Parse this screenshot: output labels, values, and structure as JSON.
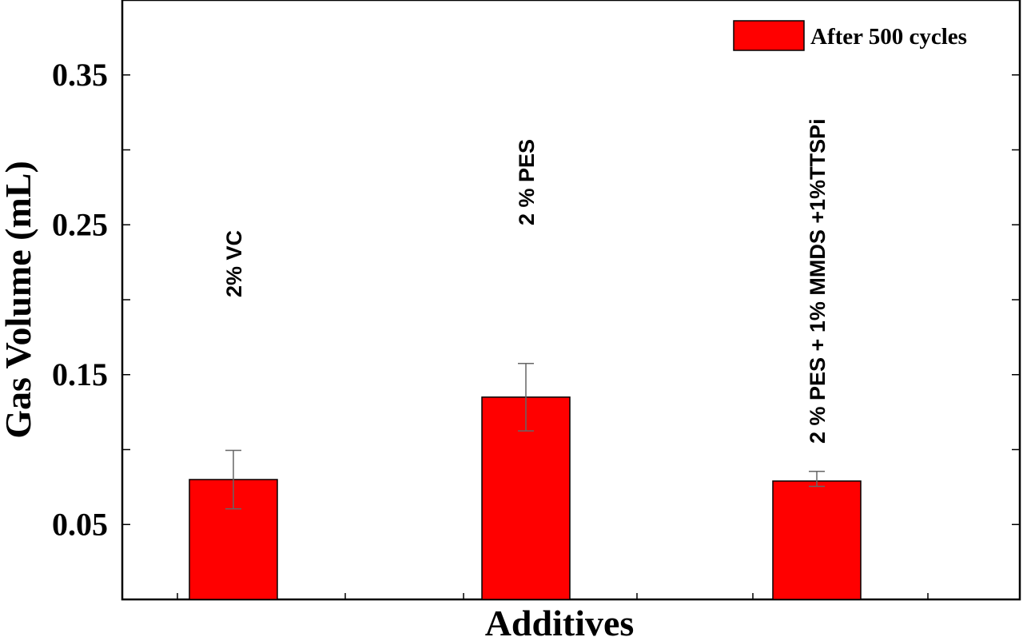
{
  "chart_data": {
    "type": "bar",
    "title": "",
    "xlabel": "Additives",
    "ylabel": "Gas Volume (mL)",
    "ylim": [
      0.0,
      0.4
    ],
    "yticks": [
      0.0,
      0.05,
      0.1,
      0.15,
      0.2,
      0.25,
      0.3,
      0.35
    ],
    "ytick_labels": [
      "",
      "0.05",
      "",
      "0.15",
      "",
      "0.25",
      "",
      "0.35"
    ],
    "categories": [
      "2% VC",
      "2 % PES",
      "2 % PES + 1% MMDS +1%TTSPi"
    ],
    "series": [
      {
        "name": "After 500 cycles",
        "color": "#ff0000",
        "values": [
          0.08,
          0.135,
          0.079
        ],
        "error_minus": [
          0.0195,
          0.0225,
          0.0035
        ],
        "error_plus": [
          0.0195,
          0.0225,
          0.0065
        ]
      }
    ],
    "legend_position": "top-right",
    "grid": false
  }
}
